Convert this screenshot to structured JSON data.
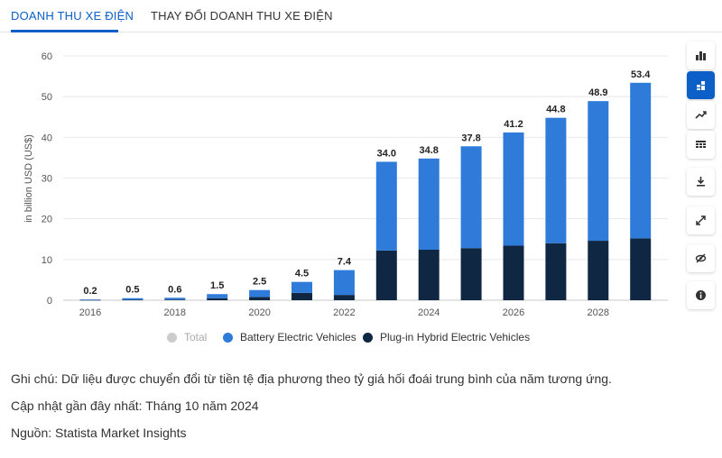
{
  "tabs": [
    {
      "label": "DOANH THU XE ĐIỆN",
      "active": true
    },
    {
      "label": "THAY ĐỔI DOANH THU XE ĐIỆN",
      "active": false
    }
  ],
  "toolbar": [
    {
      "icon": "bar-chart-icon",
      "active": false
    },
    {
      "icon": "stacked-bar-icon",
      "active": true
    },
    {
      "icon": "trend-line-icon",
      "active": false
    },
    {
      "icon": "table-icon",
      "active": false
    },
    {
      "icon": "download-icon",
      "active": false
    },
    {
      "icon": "fullscreen-icon",
      "active": false
    },
    {
      "icon": "hide-icon",
      "active": false
    },
    {
      "icon": "info-icon",
      "active": false
    }
  ],
  "chart_data": {
    "type": "bar",
    "stacked": true,
    "categories": [
      "2016",
      "2017",
      "2018",
      "2019",
      "2020",
      "2021",
      "2022",
      "2023",
      "2024",
      "2025",
      "2026",
      "2027",
      "2028",
      "2029"
    ],
    "x_tick_labels": [
      "2016",
      "2018",
      "2020",
      "2022",
      "2024",
      "2026",
      "2028"
    ],
    "series": [
      {
        "name": "Plug-in Hybrid Electric Vehicles",
        "color": "#0f2742",
        "values": [
          0.05,
          0.1,
          0.15,
          0.5,
          0.8,
          1.8,
          1.3,
          12.2,
          12.4,
          12.8,
          13.4,
          14.0,
          14.6,
          15.2
        ]
      },
      {
        "name": "Battery Electric Vehicles",
        "color": "#2e7bd9",
        "values": [
          0.15,
          0.4,
          0.45,
          1.0,
          1.7,
          2.7,
          6.1,
          21.8,
          22.4,
          25.0,
          27.8,
          30.8,
          34.3,
          38.2
        ]
      }
    ],
    "totals": [
      "0.2",
      "0.5",
      "0.6",
      "1.5",
      "2.5",
      "4.5",
      "7.4",
      "34.0",
      "34.8",
      "37.8",
      "41.2",
      "44.8",
      "48.9",
      "53.4"
    ],
    "ylabel": "in billion USD (US$)",
    "ylim": [
      0,
      60
    ],
    "yticks": [
      0,
      10,
      20,
      30,
      40,
      50,
      60
    ],
    "grid": true
  },
  "legend": [
    {
      "label": "Total",
      "color": "#cccccc",
      "muted": true
    },
    {
      "label": "Battery Electric Vehicles",
      "color": "#2e7bd9",
      "muted": false
    },
    {
      "label": "Plug-in Hybrid Electric Vehicles",
      "color": "#0f2742",
      "muted": false
    }
  ],
  "notes": {
    "note": "Ghi chú: Dữ liệu được chuyển đổi từ tiền tệ địa phương theo tỷ giá hối đoái trung bình của năm tương ứng.",
    "updated": "Cập nhật gần đây nhất: Tháng 10 năm 2024",
    "source": "Nguồn: Statista Market Insights"
  }
}
